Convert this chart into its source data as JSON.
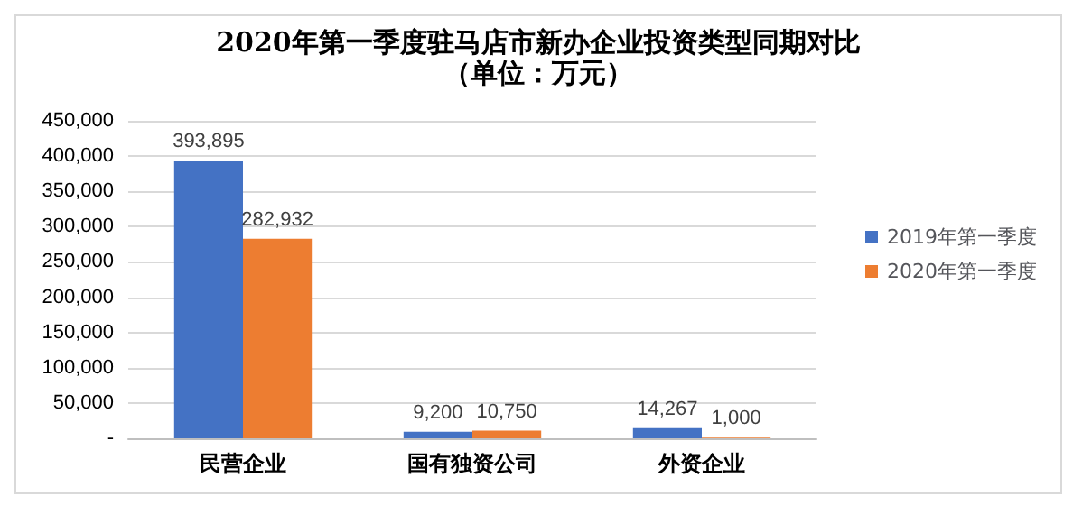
{
  "chart_data": {
    "type": "bar",
    "title": "2020年第一季度驻马店市新办企业投资类型同期对比",
    "subtitle": "（单位：万元）",
    "categories": [
      "民营企业",
      "国有独资公司",
      "外资企业"
    ],
    "series": [
      {
        "name": "2019年第一季度",
        "color": "#4472c4",
        "values": [
          393895,
          9200,
          14267
        ],
        "value_labels": [
          "393,895",
          "9,200",
          "14,267"
        ]
      },
      {
        "name": "2020年第一季度",
        "color": "#ed7d31",
        "values": [
          282932,
          10750,
          1000
        ],
        "value_labels": [
          "282,932",
          "10,750",
          "1,000"
        ]
      }
    ],
    "ylim": [
      0,
      450000
    ],
    "yticks": [
      {
        "value": 0,
        "label": "-"
      },
      {
        "value": 50000,
        "label": "50,000"
      },
      {
        "value": 100000,
        "label": "100,000"
      },
      {
        "value": 150000,
        "label": "150,000"
      },
      {
        "value": 200000,
        "label": "200,000"
      },
      {
        "value": 250000,
        "label": "250,000"
      },
      {
        "value": 300000,
        "label": "300,000"
      },
      {
        "value": 350000,
        "label": "350,000"
      },
      {
        "value": 400000,
        "label": "400,000"
      },
      {
        "value": 450000,
        "label": "450,000"
      }
    ],
    "grid": "y",
    "legend": "right"
  }
}
